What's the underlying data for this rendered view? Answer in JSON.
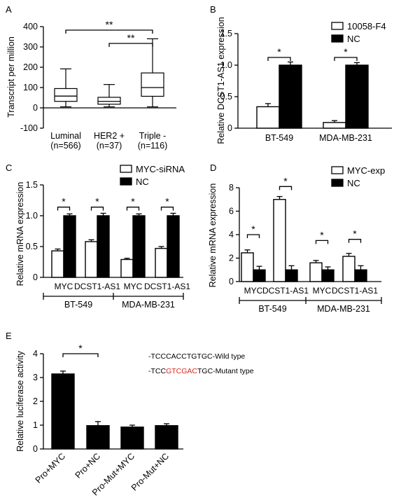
{
  "chart_data": [
    {
      "panel": "A",
      "type": "boxplot",
      "ylabel": "Transcript per million",
      "ylim": [
        -100,
        400
      ],
      "yticks": [
        -100,
        0,
        100,
        200,
        300,
        400
      ],
      "categories": [
        "Luminal",
        "HER2 +",
        "Triple -"
      ],
      "sublabels": [
        "(n=566)",
        "(n=37)",
        "(n=116)"
      ],
      "boxes": [
        {
          "min": 5,
          "q1": 32,
          "median": 58,
          "q3": 95,
          "max": 192
        },
        {
          "min": 5,
          "q1": 18,
          "median": 32,
          "q3": 52,
          "max": 115
        },
        {
          "min": 5,
          "q1": 57,
          "median": 100,
          "q3": 172,
          "max": 340
        }
      ],
      "significance": [
        {
          "from": 0,
          "to": 2,
          "label": "**"
        },
        {
          "from": 1,
          "to": 2,
          "label": "**"
        }
      ]
    },
    {
      "panel": "B",
      "type": "bar",
      "ylabel": "Relative DCST1-AS1 expression",
      "ylim": [
        0,
        1.5
      ],
      "yticks": [
        "0",
        "0.5",
        "1.0",
        "1.5"
      ],
      "categories": [
        "BT-549",
        "MDA-MB-231"
      ],
      "series": [
        {
          "name": "10058-F4",
          "fill": "#ffffff",
          "values": [
            0.34,
            0.09
          ],
          "errors": [
            0.05,
            0.03
          ]
        },
        {
          "name": "NC",
          "fill": "#000000",
          "values": [
            1.0,
            1.0
          ],
          "errors": [
            0.05,
            0.04
          ]
        }
      ],
      "significance": [
        "*",
        "*"
      ]
    },
    {
      "panel": "C",
      "type": "bar",
      "ylabel": "Relative mRNA expression",
      "ylim": [
        0,
        1.5
      ],
      "yticks": [
        "0",
        "0.5",
        "1.0",
        "1.5"
      ],
      "categories": [
        "MYC",
        "DCST1-AS1",
        "MYC",
        "DCST1-AS1"
      ],
      "groups": [
        "BT-549",
        "MDA-MB-231"
      ],
      "series": [
        {
          "name": "MYC-siRNA",
          "fill": "#ffffff",
          "values": [
            0.43,
            0.58,
            0.29,
            0.47
          ],
          "errors": [
            0.03,
            0.03,
            0.02,
            0.03
          ]
        },
        {
          "name": "NC",
          "fill": "#000000",
          "values": [
            1.0,
            1.0,
            1.0,
            1.0
          ],
          "errors": [
            0.03,
            0.04,
            0.03,
            0.04
          ]
        }
      ],
      "significance": [
        "*",
        "*",
        "*",
        "*"
      ]
    },
    {
      "panel": "D",
      "type": "bar",
      "ylabel": "Relative mRNA expression",
      "ylim": [
        0,
        8
      ],
      "yticks": [
        "0",
        "2",
        "4",
        "6",
        "8"
      ],
      "categories": [
        "MYC",
        "DCST1-AS1",
        "MYC",
        "DCST1-AS1"
      ],
      "groups": [
        "BT-549",
        "MDA-MB-231"
      ],
      "series": [
        {
          "name": "MYC-exp",
          "fill": "#ffffff",
          "values": [
            2.45,
            7.0,
            1.6,
            2.15
          ],
          "errors": [
            0.25,
            0.25,
            0.2,
            0.25
          ]
        },
        {
          "name": "NC",
          "fill": "#000000",
          "values": [
            1.0,
            1.0,
            1.0,
            1.0
          ],
          "errors": [
            0.3,
            0.35,
            0.25,
            0.35
          ]
        }
      ],
      "significance": [
        "*",
        "*",
        "*",
        "*"
      ]
    },
    {
      "panel": "E",
      "type": "bar",
      "ylabel": "Relative luciferase activity",
      "ylim": [
        0,
        4
      ],
      "yticks": [
        "0",
        "1",
        "2",
        "3",
        "4"
      ],
      "categories": [
        "Pro+MYC",
        "Pro+NC",
        "Pro-Mut+MYC",
        "Pro-Mut+NC"
      ],
      "series": [
        {
          "name": "",
          "fill": "#000000",
          "values": [
            3.15,
            0.98,
            0.92,
            0.98
          ],
          "errors": [
            0.12,
            0.17,
            0.08,
            0.08
          ]
        }
      ],
      "significance": [
        {
          "from": 0,
          "to": 1,
          "label": "*"
        }
      ],
      "annotations": {
        "wild": {
          "prefix": "-TCCCACCTGTGC-",
          "label": "Wild type"
        },
        "mutant": {
          "pre": "-TCC",
          "mut": "GTCGAC",
          "post": "TGC-",
          "label": "Mutant type",
          "mut_color": "#d9261c"
        }
      }
    }
  ]
}
